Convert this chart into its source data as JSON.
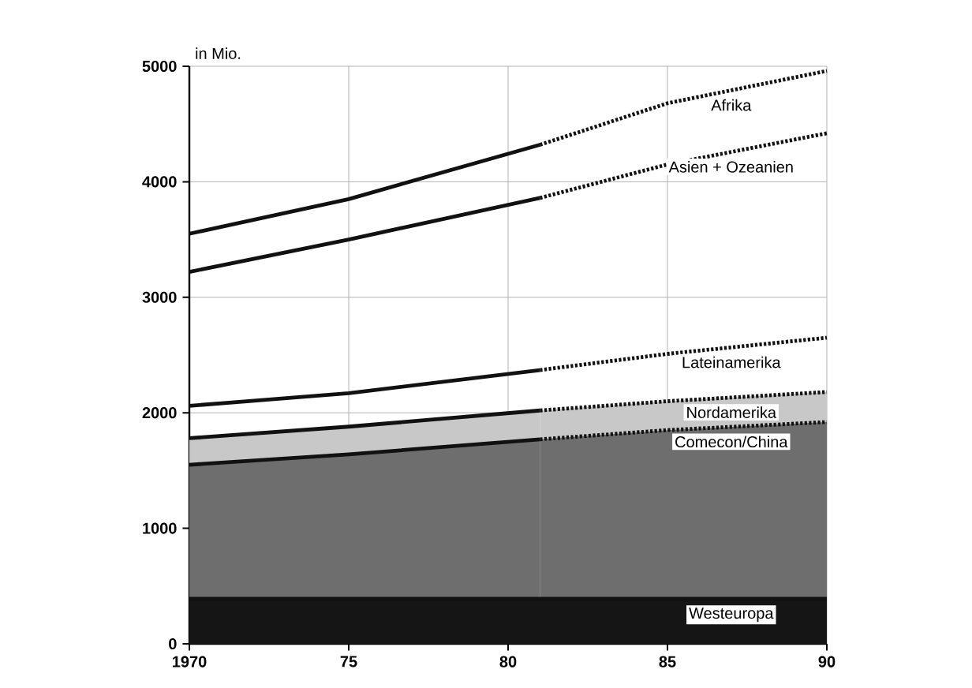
{
  "chart_data": {
    "type": "line",
    "ylabel": "in Mio.",
    "xlim": [
      1970,
      1990
    ],
    "ylim": [
      0,
      5000
    ],
    "xticks": [
      1970,
      {
        "value": 1975,
        "label": "75"
      },
      {
        "value": 1980,
        "label": "80"
      },
      {
        "value": 1985,
        "label": "85"
      },
      {
        "value": 1990,
        "label": "90"
      }
    ],
    "yticks": [
      0,
      1000,
      2000,
      3000,
      4000,
      5000
    ],
    "grid": true,
    "series": [
      {
        "color": "#111111",
        "line_style": "solid",
        "x": [
          1970,
          1975,
          1981
        ],
        "values": [
          3550,
          3850,
          4320
        ]
      },
      {
        "name": "Afrika",
        "color": "#111111",
        "line_style": "dotted",
        "x": [
          1981,
          1985,
          1990
        ],
        "values": [
          4320,
          4680,
          4960
        ]
      },
      {
        "color": "#111111",
        "line_style": "solid",
        "x": [
          1970,
          1975,
          1981
        ],
        "values": [
          3220,
          3500,
          3860
        ]
      },
      {
        "name": "Asien + Ozeanien",
        "color": "#111111",
        "line_style": "dotted",
        "x": [
          1981,
          1985,
          1990
        ],
        "values": [
          3860,
          4150,
          4420
        ]
      },
      {
        "color": "#111111",
        "line_style": "solid",
        "x": [
          1970,
          1975,
          1981
        ],
        "values": [
          2060,
          2170,
          2370
        ]
      },
      {
        "name": "Lateinamerika",
        "color": "#111111",
        "line_style": "dotted",
        "x": [
          1981,
          1985,
          1990
        ],
        "values": [
          2370,
          2510,
          2650
        ]
      },
      {
        "type": "area",
        "color": "#c8c8c8",
        "line_style": "solid",
        "x": [
          1970,
          1975,
          1981
        ],
        "values": [
          1780,
          1880,
          2020
        ]
      },
      {
        "name": "Nordamerika",
        "type": "area",
        "color": "#c8c8c8",
        "line_style": "dotted",
        "x": [
          1981,
          1985,
          1990
        ],
        "values": [
          2020,
          2100,
          2180
        ]
      },
      {
        "type": "area",
        "color": "#6e6e6e",
        "line_style": "solid",
        "x": [
          1970,
          1975,
          1981
        ],
        "values": [
          1550,
          1640,
          1770
        ]
      },
      {
        "name": "Comecon/China",
        "type": "area",
        "color": "#6e6e6e",
        "line_style": "dotted",
        "x": [
          1981,
          1985,
          1990
        ],
        "values": [
          1770,
          1850,
          1920
        ]
      },
      {
        "name": "Westeuropa",
        "type": "area",
        "color": "#151515",
        "line_style": "solid",
        "x": [
          1970,
          1975,
          1981,
          1985,
          1990
        ],
        "values": [
          390,
          390,
          390,
          390,
          390
        ]
      }
    ]
  }
}
